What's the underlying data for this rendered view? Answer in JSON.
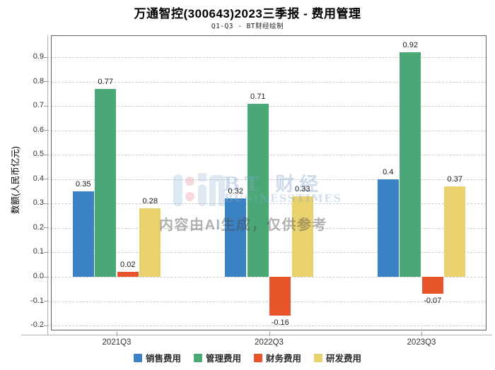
{
  "chart_data": {
    "type": "bar",
    "title": "万通智控(300643)2023三季报 - 费用管理",
    "subtitle": "Q1-Q3 - BT财经绘制",
    "ylabel": "数额(人民币亿元)",
    "xlabel": "",
    "categories": [
      "2021Q3",
      "2022Q3",
      "2023Q3"
    ],
    "series": [
      {
        "name": "销售费用",
        "color": "#3b82c4",
        "values": [
          0.35,
          0.32,
          0.4
        ]
      },
      {
        "name": "管理费用",
        "color": "#4aa877",
        "values": [
          0.77,
          0.71,
          0.92
        ]
      },
      {
        "name": "财务费用",
        "color": "#e9552b",
        "values": [
          0.02,
          -0.16,
          -0.07
        ]
      },
      {
        "name": "研发费用",
        "color": "#e9d16e",
        "values": [
          0.28,
          0.33,
          0.37
        ]
      }
    ],
    "ylim": [
      -0.22,
      0.99
    ],
    "yticks": [
      -0.2,
      -0.1,
      0.0,
      0.1,
      0.2,
      0.3,
      0.4,
      0.5,
      0.6,
      0.7,
      0.8,
      0.9
    ],
    "grid": "dashed-horizontal",
    "legend_position": "bottom",
    "bar_value_labels": true
  },
  "watermark": {
    "brand": "BT 财经",
    "brand_sub": "BUSINESSTIMES",
    "notice": "内容由AI生成，仅供参考"
  }
}
